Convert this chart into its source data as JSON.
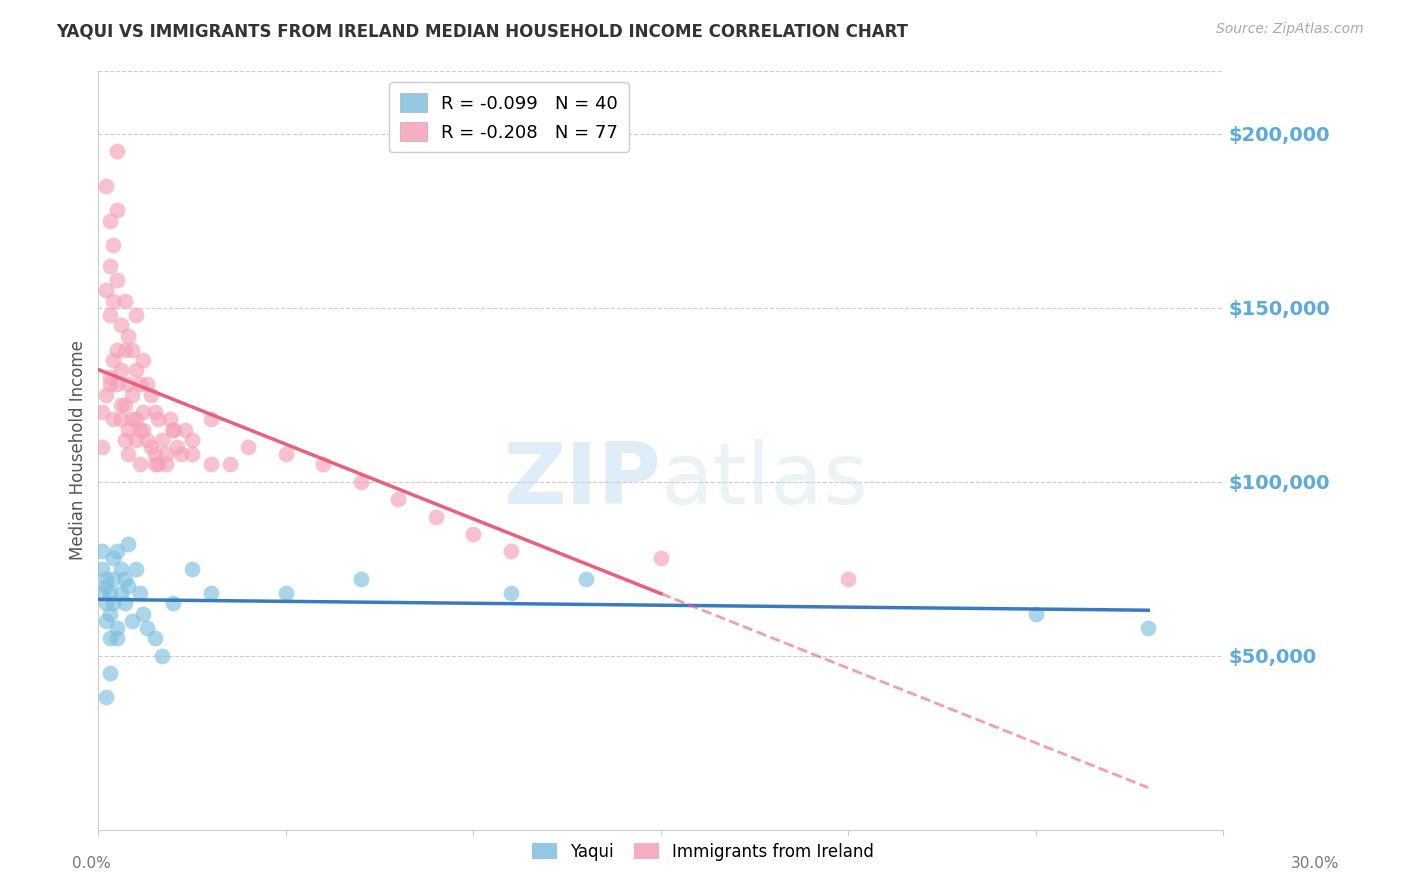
{
  "title": "YAQUI VS IMMIGRANTS FROM IRELAND MEDIAN HOUSEHOLD INCOME CORRELATION CHART",
  "source": "Source: ZipAtlas.com",
  "ylabel": "Median Household Income",
  "watermark_zip": "ZIP",
  "watermark_atlas": "atlas",
  "yaqui_R": -0.099,
  "yaqui_N": 40,
  "ireland_R": -0.208,
  "ireland_N": 77,
  "yaqui_color": "#7fbfdd",
  "ireland_color": "#f4a0b8",
  "yaqui_line_color": "#3a7abf",
  "ireland_line_color": "#e8607a",
  "ireland_line_style": "solid",
  "right_axis_color": "#5baae0",
  "ytick_values": [
    50000,
    100000,
    150000,
    200000
  ],
  "ylim": [
    0,
    218000
  ],
  "xlim": [
    0.0,
    0.3
  ],
  "yaqui_x": [
    0.001,
    0.001,
    0.001,
    0.002,
    0.002,
    0.002,
    0.002,
    0.003,
    0.003,
    0.003,
    0.004,
    0.004,
    0.004,
    0.005,
    0.005,
    0.006,
    0.006,
    0.007,
    0.007,
    0.008,
    0.009,
    0.01,
    0.011,
    0.012,
    0.013,
    0.015,
    0.017,
    0.02,
    0.025,
    0.03,
    0.05,
    0.07,
    0.11,
    0.13,
    0.25,
    0.28,
    0.008,
    0.005,
    0.003,
    0.002
  ],
  "yaqui_y": [
    80000,
    75000,
    68000,
    72000,
    65000,
    70000,
    60000,
    68000,
    62000,
    55000,
    78000,
    72000,
    65000,
    80000,
    58000,
    75000,
    68000,
    72000,
    65000,
    70000,
    60000,
    75000,
    68000,
    62000,
    58000,
    55000,
    50000,
    65000,
    75000,
    68000,
    68000,
    72000,
    68000,
    72000,
    62000,
    58000,
    82000,
    55000,
    45000,
    38000
  ],
  "ireland_x": [
    0.001,
    0.001,
    0.002,
    0.002,
    0.002,
    0.003,
    0.003,
    0.003,
    0.003,
    0.004,
    0.004,
    0.004,
    0.005,
    0.005,
    0.005,
    0.005,
    0.006,
    0.006,
    0.006,
    0.007,
    0.007,
    0.007,
    0.008,
    0.008,
    0.008,
    0.009,
    0.009,
    0.01,
    0.01,
    0.01,
    0.011,
    0.011,
    0.012,
    0.012,
    0.013,
    0.013,
    0.014,
    0.014,
    0.015,
    0.015,
    0.016,
    0.016,
    0.017,
    0.018,
    0.019,
    0.02,
    0.021,
    0.022,
    0.023,
    0.025,
    0.03,
    0.035,
    0.04,
    0.05,
    0.06,
    0.07,
    0.08,
    0.09,
    0.1,
    0.11,
    0.15,
    0.2,
    0.003,
    0.004,
    0.005,
    0.006,
    0.007,
    0.008,
    0.009,
    0.01,
    0.011,
    0.012,
    0.015,
    0.018,
    0.02,
    0.025,
    0.03
  ],
  "ireland_y": [
    120000,
    110000,
    185000,
    155000,
    125000,
    175000,
    162000,
    148000,
    128000,
    168000,
    152000,
    135000,
    195000,
    178000,
    158000,
    138000,
    145000,
    132000,
    118000,
    152000,
    138000,
    122000,
    142000,
    128000,
    115000,
    138000,
    125000,
    148000,
    132000,
    118000,
    128000,
    115000,
    135000,
    120000,
    128000,
    112000,
    125000,
    110000,
    120000,
    105000,
    118000,
    105000,
    112000,
    108000,
    118000,
    115000,
    110000,
    108000,
    115000,
    112000,
    118000,
    105000,
    110000,
    108000,
    105000,
    100000,
    95000,
    90000,
    85000,
    80000,
    78000,
    72000,
    130000,
    118000,
    128000,
    122000,
    112000,
    108000,
    118000,
    112000,
    105000,
    115000,
    108000,
    105000,
    115000,
    108000,
    105000
  ]
}
